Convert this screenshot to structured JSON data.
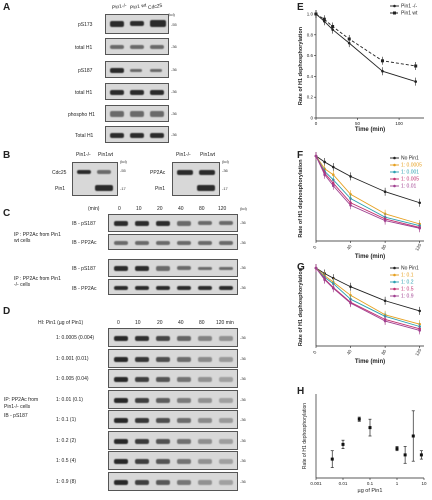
{
  "panels": {
    "A": {
      "letter": "A",
      "col_labels": [
        "Pin1-/-",
        "Pin1 wt",
        "Cdc25"
      ],
      "unit": "(kd)",
      "rows": [
        "pS173",
        "total H1",
        "pS187",
        "total H1",
        "phospho H1",
        "Total H1"
      ],
      "markers": [
        "-55",
        "-36",
        "-36",
        "-36",
        "-36",
        "-36"
      ]
    },
    "B": {
      "letter": "B",
      "left_cols": [
        "Pin1-/-",
        "Pin1wt"
      ],
      "left_rows": [
        "Cdc25",
        "Pin1"
      ],
      "left_markers": [
        "-55",
        "-17"
      ],
      "right_cols": [
        "Pin1-/-",
        "Pin1wt"
      ],
      "right_rows": [
        "PP2Ac",
        "Pin1"
      ],
      "right_markers": [
        "-36",
        "-17"
      ],
      "unit": "(kd)"
    },
    "C": {
      "letter": "C",
      "time_label": "(min)",
      "times": [
        "0",
        "10",
        "20",
        "40",
        "80",
        "120"
      ],
      "unit": "(kd)",
      "group1": "IP : PP2Ac from Pin1 wt cells",
      "group2": "IP : PP2Ac from Pin1 -/- cells",
      "rows": [
        "IB - pS187",
        "IB - PP2Ac",
        "IB - pS187",
        "IB - PP2Ac"
      ],
      "markers": [
        "-36",
        "-36",
        "-36",
        "-36"
      ]
    },
    "D": {
      "letter": "D",
      "header": "HI: Pin1 (µg of Pin1)",
      "times": [
        "0",
        "10",
        "20",
        "40",
        "80",
        "120 min"
      ],
      "ratios": [
        "1: 0.0005 (0.004)",
        "1: 0.001 (0.01)",
        "1: 0.005 (0.04)",
        "1: 0.01 (0.1)",
        "1: 0.1 (1)",
        "1: 0.2 (2)",
        "1: 0.5 (4)",
        "1: 0.9 (8)"
      ],
      "side_label_1": "IP: PP2Ac from",
      "side_label_2": "Pin1-/- cells",
      "side_label_3": "IB - pS187",
      "markers": [
        "-36",
        "-36",
        "-36",
        "-36",
        "-36",
        "-36",
        "-36",
        "-36"
      ]
    },
    "E": {
      "letter": "E"
    },
    "F": {
      "letter": "F"
    },
    "G": {
      "letter": "G"
    },
    "H": {
      "letter": "H"
    }
  },
  "chart_data": [
    {
      "id": "E",
      "type": "line",
      "ylabel": "Rate of H1 dephosphorylation",
      "xlabel": "Time (min)",
      "ylim": [
        0,
        1
      ],
      "xlim": [
        0,
        130
      ],
      "yticks": [
        "0",
        "0.2",
        "0.4",
        "0.6",
        "0.8",
        "1.0"
      ],
      "xticks": [
        "0",
        "50",
        "100"
      ],
      "xtick_values": [
        0,
        50,
        100
      ],
      "legend": "top-right",
      "series": [
        {
          "name": "Pin1 -/-",
          "x": [
            0,
            10,
            20,
            40,
            80,
            120
          ],
          "y": [
            1.0,
            0.93,
            0.85,
            0.72,
            0.45,
            0.35
          ]
        },
        {
          "name": "Pin1 wt",
          "x": [
            0,
            10,
            20,
            40,
            80,
            120
          ],
          "y": [
            1.0,
            0.95,
            0.88,
            0.76,
            0.55,
            0.5
          ]
        }
      ]
    },
    {
      "id": "F",
      "type": "line",
      "ylabel": "Rate of H1 dephosphorylation",
      "xlabel": "Time (min)",
      "ylim": [
        0,
        1
      ],
      "xlim": [
        0,
        125
      ],
      "xticks": [
        "0",
        "40",
        "80",
        "120"
      ],
      "xtick_values": [
        0,
        40,
        80,
        120
      ],
      "legend": "top-right",
      "series": [
        {
          "name": "No Pin1",
          "x": [
            0,
            10,
            20,
            40,
            80,
            120
          ],
          "y": [
            1.0,
            0.93,
            0.87,
            0.76,
            0.58,
            0.45
          ],
          "color": "#222222"
        },
        {
          "name": "1: 0.0005",
          "x": [
            0,
            10,
            20,
            40,
            80,
            120
          ],
          "y": [
            1.0,
            0.85,
            0.78,
            0.55,
            0.32,
            0.2
          ],
          "color": "#e6a020"
        },
        {
          "name": "1: 0.001",
          "x": [
            0,
            10,
            20,
            40,
            80,
            120
          ],
          "y": [
            1.0,
            0.82,
            0.72,
            0.5,
            0.28,
            0.18
          ],
          "color": "#2aa0b0"
        },
        {
          "name": "1: 0.005",
          "x": [
            0,
            10,
            20,
            40,
            80,
            120
          ],
          "y": [
            1.0,
            0.8,
            0.68,
            0.45,
            0.26,
            0.16
          ],
          "color": "#c03070"
        },
        {
          "name": "1: 0.01",
          "x": [
            0,
            10,
            20,
            40,
            80,
            120
          ],
          "y": [
            1.0,
            0.78,
            0.65,
            0.42,
            0.24,
            0.15
          ],
          "color": "#a04090"
        }
      ]
    },
    {
      "id": "G",
      "type": "line",
      "ylabel": "Rate of H1 dephosphorylation",
      "xlabel": "Time (min)",
      "ylim": [
        0,
        1
      ],
      "xlim": [
        0,
        125
      ],
      "xticks": [
        "0",
        "40",
        "80",
        "120"
      ],
      "xtick_values": [
        0,
        40,
        80,
        120
      ],
      "legend": "top-right",
      "series": [
        {
          "name": "No Pin1",
          "x": [
            0,
            10,
            20,
            40,
            80,
            120
          ],
          "y": [
            1.0,
            0.93,
            0.87,
            0.76,
            0.58,
            0.45
          ],
          "color": "#222222"
        },
        {
          "name": "1: 0.1",
          "x": [
            0,
            10,
            20,
            40,
            80,
            120
          ],
          "y": [
            1.0,
            0.9,
            0.82,
            0.65,
            0.4,
            0.28
          ],
          "color": "#e6a020"
        },
        {
          "name": "1: 0.2",
          "x": [
            0,
            10,
            20,
            40,
            80,
            120
          ],
          "y": [
            1.0,
            0.88,
            0.8,
            0.6,
            0.38,
            0.25
          ],
          "color": "#2aa0b0"
        },
        {
          "name": "1: 0.5",
          "x": [
            0,
            10,
            20,
            40,
            80,
            120
          ],
          "y": [
            1.0,
            0.86,
            0.75,
            0.56,
            0.34,
            0.22
          ],
          "color": "#c03070"
        },
        {
          "name": "1: 0.9",
          "x": [
            0,
            10,
            20,
            40,
            80,
            120
          ],
          "y": [
            1.0,
            0.85,
            0.74,
            0.55,
            0.32,
            0.2
          ],
          "color": "#a04090"
        }
      ]
    },
    {
      "id": "H",
      "type": "scatter",
      "ylabel": "Rate of H1 dephosphorylation",
      "xlabel": "µg of Pin1",
      "xscale": "log",
      "xlim": [
        0.001,
        10
      ],
      "ylim": [
        0,
        0.04
      ],
      "xticks": [
        "0.001",
        "0.01",
        "0.1",
        "1",
        "10"
      ],
      "xtick_values": [
        0.001,
        0.01,
        0.1,
        1,
        10
      ],
      "points": [
        {
          "x": 0.004,
          "y": 0.009,
          "err": 0.004
        },
        {
          "x": 0.01,
          "y": 0.016,
          "err": 0.002
        },
        {
          "x": 0.04,
          "y": 0.028,
          "err": 0.001
        },
        {
          "x": 0.1,
          "y": 0.024,
          "err": 0.004
        },
        {
          "x": 1,
          "y": 0.014,
          "err": 0.001
        },
        {
          "x": 2,
          "y": 0.011,
          "err": 0.004
        },
        {
          "x": 4,
          "y": 0.02,
          "err": 0.012
        },
        {
          "x": 8,
          "y": 0.011,
          "err": 0.002
        }
      ]
    }
  ]
}
